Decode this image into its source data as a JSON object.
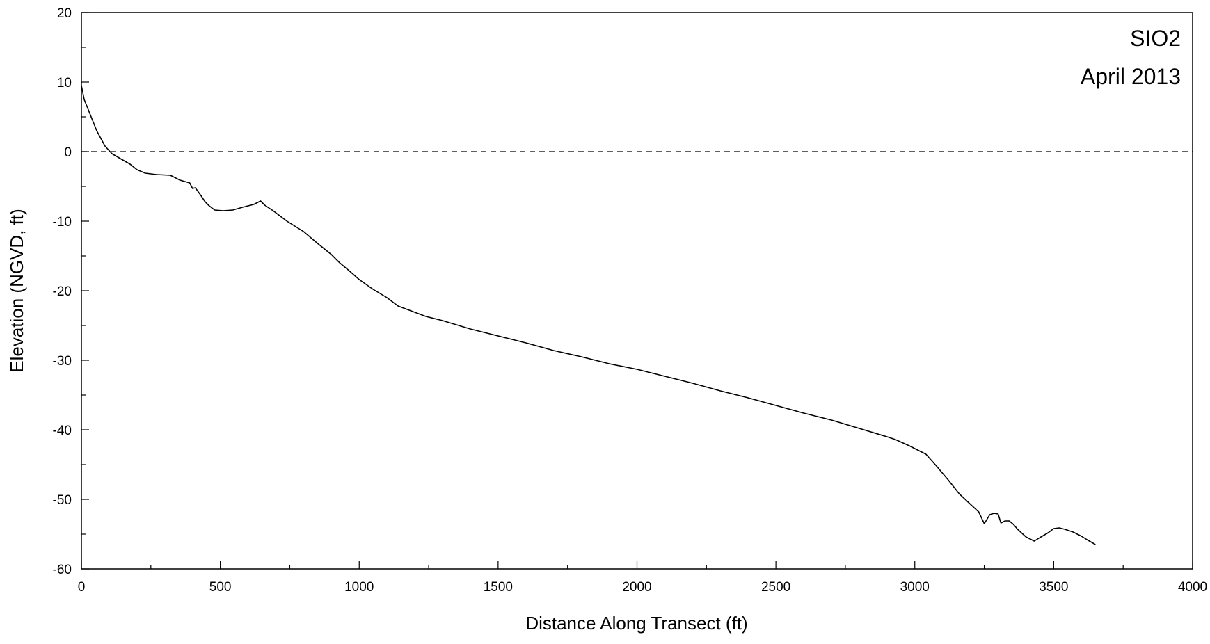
{
  "chart_data": {
    "type": "line",
    "title": "",
    "xlabel": "Distance Along Transect (ft)",
    "ylabel": "Elevation (NGVD, ft)",
    "xlim": [
      0,
      4000
    ],
    "ylim": [
      -60,
      20
    ],
    "xticks": [
      0,
      500,
      1000,
      1500,
      2000,
      2500,
      3000,
      3500,
      4000
    ],
    "yticks": [
      20,
      10,
      0,
      -10,
      -20,
      -30,
      -40,
      -50,
      -60
    ],
    "grid": false,
    "legend": "none",
    "annotations": [
      "SIO2",
      "April 2013"
    ],
    "reference_line": {
      "y": 0,
      "style": "dashed"
    },
    "line_color": "#000000",
    "series": [
      {
        "x": [
          0,
          10,
          30,
          55,
          85,
          110,
          140,
          175,
          200,
          230,
          270,
          320,
          355,
          390,
          400,
          410,
          430,
          445,
          460,
          480,
          510,
          545,
          580,
          620,
          645,
          660,
          690,
          740,
          800,
          850,
          900,
          930,
          960,
          1000,
          1050,
          1100,
          1140,
          1200,
          1240,
          1300,
          1400,
          1500,
          1550,
          1600,
          1700,
          1800,
          1900,
          2000,
          2100,
          2200,
          2300,
          2400,
          2500,
          2600,
          2700,
          2800,
          2900,
          2930,
          2980,
          3040,
          3080,
          3120,
          3160,
          3200,
          3230,
          3250,
          3270,
          3285,
          3300,
          3310,
          3325,
          3340,
          3355,
          3370,
          3400,
          3430,
          3450,
          3480,
          3500,
          3520,
          3540,
          3570,
          3600,
          3620,
          3650
        ],
        "y": [
          9.5,
          7.5,
          5.5,
          3,
          0.8,
          -0.3,
          -1,
          -1.8,
          -2.6,
          -3.1,
          -3.3,
          -3.4,
          -4.1,
          -4.5,
          -5.3,
          -5.2,
          -6.3,
          -7.2,
          -7.8,
          -8.4,
          -8.5,
          -8.4,
          -8,
          -7.6,
          -7.1,
          -7.7,
          -8.5,
          -10,
          -11.5,
          -13.2,
          -14.8,
          -16,
          -17,
          -18.4,
          -19.8,
          -21,
          -22.2,
          -23.1,
          -23.7,
          -24.3,
          -25.5,
          -26.5,
          -27,
          -27.5,
          -28.6,
          -29.5,
          -30.5,
          -31.3,
          -32.3,
          -33.3,
          -34.4,
          -35.4,
          -36.5,
          -37.6,
          -38.6,
          -39.8,
          -41,
          -41.4,
          -42.3,
          -43.5,
          -45.3,
          -47.2,
          -49.2,
          -50.7,
          -51.8,
          -53.5,
          -52.2,
          -52,
          -52.1,
          -53.4,
          -53.1,
          -53.1,
          -53.6,
          -54.3,
          -55.4,
          -56,
          -55.5,
          -54.8,
          -54.2,
          -54.1,
          -54.3,
          -54.7,
          -55.3,
          -55.8,
          -56.5
        ]
      }
    ]
  }
}
